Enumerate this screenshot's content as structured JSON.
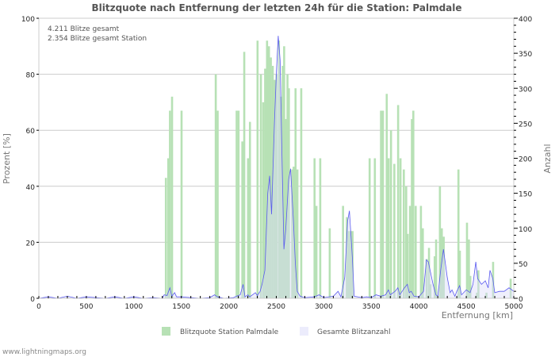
{
  "chart_data": {
    "type": "bar",
    "title": "Blitzquote nach Entfernung der letzten 24h für die Station: Palmdale",
    "annotations": [
      "4.211 Blitze gesamt",
      "2.354 Blitze gesamt Station"
    ],
    "xlabel": "Entfernung   [km]",
    "ylabel_left": "Prozent   [%]",
    "ylabel_right": "Anzahl",
    "xlim": [
      0,
      5000
    ],
    "ylim_left": [
      0,
      100
    ],
    "ylim_right": [
      0,
      400
    ],
    "x_ticks": [
      "0",
      "500",
      "1000",
      "1500",
      "2000",
      "2500",
      "3000",
      "3500",
      "4000",
      "4500",
      "5000"
    ],
    "y_ticks_left": [
      "0",
      "20",
      "40",
      "60",
      "80",
      "100"
    ],
    "y_ticks_right": [
      "0",
      "50",
      "100",
      "150",
      "200",
      "250",
      "300",
      "350",
      "400"
    ],
    "grid": true,
    "legend": [
      "Blitzquote Station Palmdale",
      "Gesamte Blitzanzahl"
    ],
    "legend_position": "bottom",
    "series": [
      {
        "name": "Blitzquote Station Palmdale",
        "axis": "left",
        "color": "#b7e1b5",
        "points": [
          [
            1335,
            43
          ],
          [
            1360,
            50
          ],
          [
            1378,
            67
          ],
          [
            1400,
            72
          ],
          [
            1500,
            67
          ],
          [
            1860,
            80
          ],
          [
            1880,
            67
          ],
          [
            2080,
            67
          ],
          [
            2100,
            67
          ],
          [
            2140,
            56
          ],
          [
            2160,
            88
          ],
          [
            2200,
            50
          ],
          [
            2220,
            63
          ],
          [
            2300,
            92
          ],
          [
            2335,
            80
          ],
          [
            2360,
            70
          ],
          [
            2380,
            82
          ],
          [
            2400,
            92
          ],
          [
            2420,
            90
          ],
          [
            2440,
            86
          ],
          [
            2460,
            83
          ],
          [
            2480,
            78
          ],
          [
            2500,
            80
          ],
          [
            2525,
            92
          ],
          [
            2545,
            72
          ],
          [
            2565,
            83
          ],
          [
            2580,
            90
          ],
          [
            2600,
            64
          ],
          [
            2615,
            80
          ],
          [
            2630,
            75
          ],
          [
            2665,
            46
          ],
          [
            2680,
            47
          ],
          [
            2700,
            75
          ],
          [
            2720,
            46
          ],
          [
            2760,
            75
          ],
          [
            2900,
            50
          ],
          [
            2920,
            33
          ],
          [
            2960,
            50
          ],
          [
            3060,
            25
          ],
          [
            3200,
            33
          ],
          [
            3240,
            29
          ],
          [
            3260,
            24
          ],
          [
            3280,
            24
          ],
          [
            3300,
            24
          ],
          [
            3480,
            50
          ],
          [
            3535,
            50
          ],
          [
            3600,
            67
          ],
          [
            3620,
            67
          ],
          [
            3660,
            73
          ],
          [
            3680,
            50
          ],
          [
            3705,
            60
          ],
          [
            3740,
            48
          ],
          [
            3780,
            69
          ],
          [
            3805,
            50
          ],
          [
            3840,
            46
          ],
          [
            3865,
            40
          ],
          [
            3880,
            23
          ],
          [
            3905,
            33
          ],
          [
            3925,
            64
          ],
          [
            3940,
            67
          ],
          [
            3965,
            33
          ],
          [
            4020,
            33
          ],
          [
            4040,
            25
          ],
          [
            4080,
            14
          ],
          [
            4105,
            18
          ],
          [
            4120,
            5
          ],
          [
            4165,
            15
          ],
          [
            4180,
            21
          ],
          [
            4220,
            40
          ],
          [
            4240,
            25
          ],
          [
            4260,
            22
          ],
          [
            4415,
            46
          ],
          [
            4430,
            17
          ],
          [
            4505,
            27
          ],
          [
            4525,
            21
          ],
          [
            4540,
            8
          ],
          [
            4610,
            2
          ],
          [
            4625,
            10
          ],
          [
            4710,
            2
          ],
          [
            4780,
            13
          ],
          [
            4965,
            7
          ]
        ]
      },
      {
        "name": "Gesamte Blitzanzahl",
        "axis": "right",
        "color": "#5a5af0",
        "points": [
          [
            0,
            0
          ],
          [
            100,
            2
          ],
          [
            200,
            0
          ],
          [
            300,
            3
          ],
          [
            400,
            0
          ],
          [
            500,
            2
          ],
          [
            600,
            1
          ],
          [
            700,
            0
          ],
          [
            800,
            2
          ],
          [
            900,
            0
          ],
          [
            1000,
            2
          ],
          [
            1100,
            0
          ],
          [
            1200,
            1
          ],
          [
            1300,
            0
          ],
          [
            1320,
            5
          ],
          [
            1350,
            4
          ],
          [
            1380,
            15
          ],
          [
            1400,
            3
          ],
          [
            1430,
            8
          ],
          [
            1450,
            2
          ],
          [
            1500,
            2
          ],
          [
            1600,
            1
          ],
          [
            1700,
            0
          ],
          [
            1800,
            1
          ],
          [
            1850,
            5
          ],
          [
            1880,
            2
          ],
          [
            1950,
            0
          ],
          [
            2050,
            1
          ],
          [
            2080,
            3
          ],
          [
            2120,
            5
          ],
          [
            2150,
            20
          ],
          [
            2170,
            2
          ],
          [
            2200,
            5
          ],
          [
            2220,
            2
          ],
          [
            2280,
            8
          ],
          [
            2300,
            4
          ],
          [
            2330,
            10
          ],
          [
            2350,
            20
          ],
          [
            2380,
            40
          ],
          [
            2410,
            150
          ],
          [
            2430,
            175
          ],
          [
            2450,
            120
          ],
          [
            2480,
            250
          ],
          [
            2500,
            320
          ],
          [
            2520,
            375
          ],
          [
            2540,
            340
          ],
          [
            2560,
            200
          ],
          [
            2580,
            70
          ],
          [
            2600,
            100
          ],
          [
            2630,
            170
          ],
          [
            2650,
            185
          ],
          [
            2680,
            110
          ],
          [
            2700,
            50
          ],
          [
            2720,
            10
          ],
          [
            2750,
            3
          ],
          [
            2800,
            1
          ],
          [
            2900,
            2
          ],
          [
            2950,
            5
          ],
          [
            3000,
            1
          ],
          [
            3100,
            3
          ],
          [
            3150,
            10
          ],
          [
            3180,
            2
          ],
          [
            3220,
            30
          ],
          [
            3250,
            110
          ],
          [
            3270,
            125
          ],
          [
            3300,
            60
          ],
          [
            3320,
            3
          ],
          [
            3400,
            1
          ],
          [
            3450,
            2
          ],
          [
            3500,
            1
          ],
          [
            3550,
            5
          ],
          [
            3600,
            3
          ],
          [
            3650,
            5
          ],
          [
            3680,
            12
          ],
          [
            3700,
            5
          ],
          [
            3750,
            10
          ],
          [
            3780,
            15
          ],
          [
            3800,
            5
          ],
          [
            3850,
            15
          ],
          [
            3880,
            20
          ],
          [
            3900,
            8
          ],
          [
            3920,
            10
          ],
          [
            3950,
            3
          ],
          [
            4000,
            2
          ],
          [
            4050,
            10
          ],
          [
            4080,
            55
          ],
          [
            4100,
            52
          ],
          [
            4150,
            20
          ],
          [
            4180,
            5
          ],
          [
            4200,
            3
          ],
          [
            4230,
            40
          ],
          [
            4260,
            70
          ],
          [
            4300,
            30
          ],
          [
            4330,
            8
          ],
          [
            4350,
            12
          ],
          [
            4380,
            3
          ],
          [
            4400,
            10
          ],
          [
            4430,
            18
          ],
          [
            4450,
            5
          ],
          [
            4500,
            12
          ],
          [
            4540,
            8
          ],
          [
            4570,
            20
          ],
          [
            4600,
            52
          ],
          [
            4620,
            28
          ],
          [
            4660,
            20
          ],
          [
            4700,
            25
          ],
          [
            4730,
            15
          ],
          [
            4750,
            40
          ],
          [
            4780,
            28
          ],
          [
            4800,
            8
          ],
          [
            4850,
            10
          ],
          [
            4900,
            10
          ],
          [
            4950,
            15
          ],
          [
            5000,
            10
          ]
        ]
      }
    ]
  },
  "footer": "www.lightningmaps.org"
}
